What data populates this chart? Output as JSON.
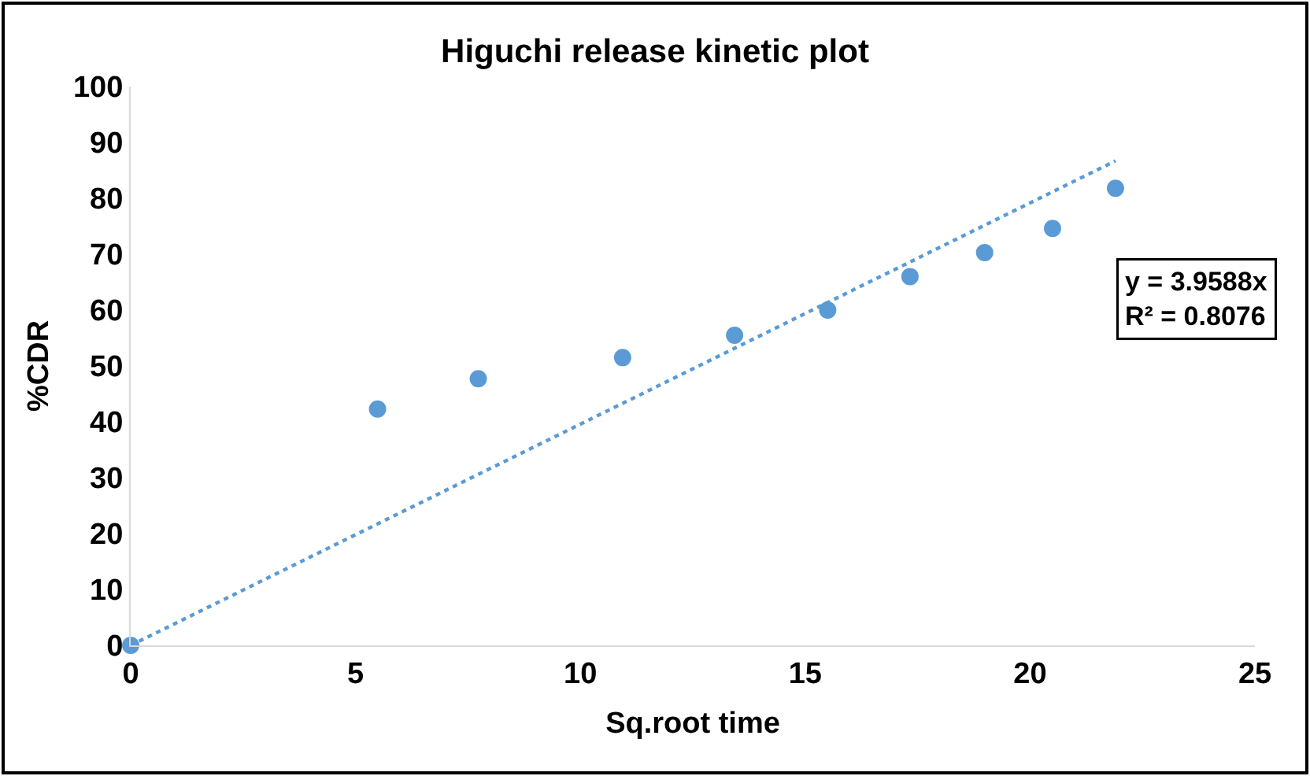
{
  "chart_data": {
    "type": "scatter",
    "title": "Higuchi release kinetic plot",
    "xlabel": "Sq.root time",
    "ylabel": "%CDR",
    "xlim": [
      0,
      25
    ],
    "xticks": [
      0,
      5,
      10,
      15,
      20,
      25
    ],
    "ylim": [
      0,
      100
    ],
    "yticks": [
      0,
      10,
      20,
      30,
      40,
      50,
      60,
      70,
      80,
      90,
      100
    ],
    "grid": false,
    "marker": "circle",
    "series": [
      {
        "color": "#5b9bd5",
        "x": [
          0,
          5.49,
          7.73,
          10.94,
          13.43,
          15.5,
          17.33,
          18.99,
          20.5,
          21.9
        ],
        "values": [
          0,
          42.3,
          47.7,
          51.5,
          55.5,
          60,
          66,
          70.3,
          74.6,
          81.8
        ]
      },
      {
        "type": "line",
        "color": "#5b9bd5",
        "marker": "none",
        "line_style": "dotted",
        "x": [
          0,
          21.9
        ],
        "values": [
          0,
          86.7
        ]
      }
    ],
    "annotations": [
      "y = 3.9588x\nR² = 0.8076"
    ]
  }
}
